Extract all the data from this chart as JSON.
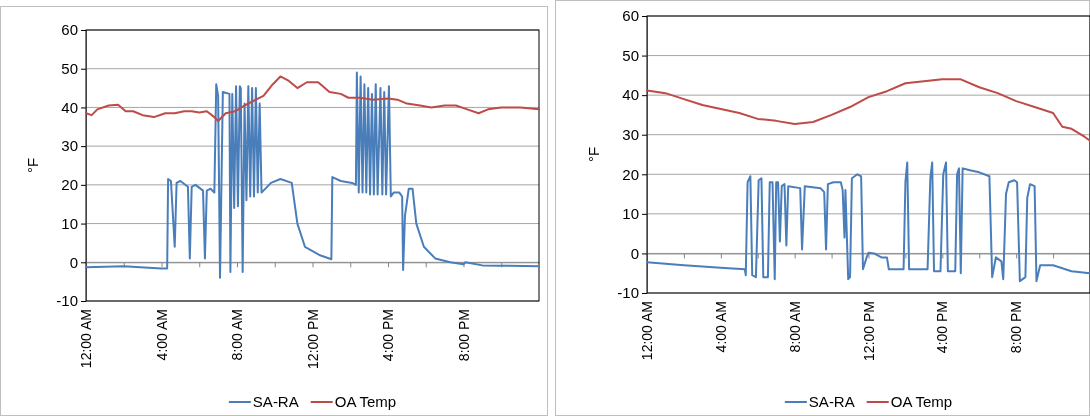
{
  "chart_data": [
    {
      "type": "line",
      "ylabel": "°F",
      "xlim": [
        0,
        24
      ],
      "ylim": [
        -10,
        60
      ],
      "yticks": [
        -10,
        0,
        10,
        20,
        30,
        40,
        50,
        60
      ],
      "xticks": [
        {
          "value": 0,
          "label": "12:00 AM"
        },
        {
          "value": 2,
          "label": null
        },
        {
          "value": 4,
          "label": "4:00 AM"
        },
        {
          "value": 6,
          "label": null
        },
        {
          "value": 8,
          "label": "8:00 AM"
        },
        {
          "value": 10,
          "label": null
        },
        {
          "value": 12,
          "label": "12:00 PM"
        },
        {
          "value": 14,
          "label": null
        },
        {
          "value": 16,
          "label": "4:00 PM"
        },
        {
          "value": 18,
          "label": null
        },
        {
          "value": 20,
          "label": "8:00 PM"
        },
        {
          "value": 22,
          "label": null
        }
      ],
      "grid": "y",
      "legend": "bottom",
      "line_style": "solid",
      "marker": "none",
      "series": [
        {
          "name": "SA-RA",
          "color": "#4a7ebb",
          "x": [
            0,
            2,
            4,
            4.3,
            4.35,
            4.5,
            4.7,
            4.8,
            5.0,
            5.4,
            5.5,
            5.6,
            5.8,
            6.2,
            6.3,
            6.4,
            6.6,
            6.8,
            6.9,
            7.0,
            7.1,
            7.25,
            7.6,
            7.65,
            7.75,
            7.85,
            7.95,
            8.05,
            8.15,
            8.2,
            8.3,
            8.4,
            8.5,
            8.6,
            8.7,
            8.8,
            8.9,
            9.0,
            9.1,
            9.2,
            9.3,
            9.8,
            10.3,
            10.9,
            11.2,
            11.6,
            12.4,
            13.0,
            13.05,
            13.5,
            14.1,
            14.3,
            14.35,
            14.45,
            14.55,
            14.65,
            14.75,
            14.85,
            14.95,
            15.05,
            15.15,
            15.25,
            15.35,
            15.45,
            15.6,
            15.7,
            15.8,
            15.9,
            16.05,
            16.15,
            16.3,
            16.6,
            16.75,
            16.8,
            16.9,
            17.1,
            17.3,
            17.5,
            17.9,
            18.5,
            19.3,
            20.0,
            20.1,
            21,
            22,
            24
          ],
          "values": [
            -1.3,
            -1.0,
            -1.6,
            -1.6,
            21.5,
            21,
            4,
            20.5,
            21,
            19.5,
            1,
            19.5,
            20,
            18.5,
            1,
            18.5,
            19,
            18,
            46,
            43,
            -4,
            44,
            43.5,
            -2.5,
            43.5,
            14,
            45.5,
            14.5,
            45.5,
            45,
            -2.5,
            41,
            16,
            45.5,
            17,
            45,
            17,
            45,
            18,
            41,
            18,
            20.5,
            21.5,
            20.5,
            10,
            4,
            1.8,
            0.8,
            22,
            21,
            20.5,
            20,
            49,
            18,
            48,
            18,
            46,
            18,
            45,
            17.5,
            43.5,
            17.5,
            46,
            17.5,
            45,
            17.5,
            44,
            17.5,
            45.5,
            17,
            18,
            18,
            17,
            -2,
            12,
            19,
            19,
            10,
            4,
            1,
            0,
            -0.5,
            0,
            -0.8,
            -0.9,
            -1.0
          ]
        },
        {
          "name": "OA Temp",
          "color": "#be4b48",
          "x": [
            0,
            0.3,
            0.6,
            1.2,
            1.7,
            2.1,
            2.5,
            3.0,
            3.6,
            4.2,
            4.7,
            5.2,
            5.6,
            6.0,
            6.4,
            6.8,
            7.0,
            7.4,
            7.9,
            8.4,
            9.0,
            9.4,
            9.9,
            10.3,
            10.7,
            11.2,
            11.7,
            12.3,
            12.9,
            13.5,
            13.9,
            14.5,
            15.2,
            16.0,
            16.5,
            17.0,
            17.7,
            18.3,
            19.0,
            19.6,
            20.2,
            20.8,
            21.3,
            22,
            23,
            24
          ],
          "values": [
            38.5,
            38,
            39.5,
            40.5,
            40.7,
            39,
            39,
            38,
            37.5,
            38.5,
            38.5,
            39,
            39,
            38.7,
            39,
            37.5,
            36.5,
            38.5,
            39,
            40.5,
            42,
            43,
            46,
            48,
            47,
            45,
            46.5,
            46.5,
            44,
            43.5,
            42.5,
            42.5,
            42,
            42.3,
            42,
            41,
            40.5,
            40,
            40.5,
            40.5,
            39.5,
            38.5,
            39.5,
            40,
            40,
            39.5
          ]
        }
      ]
    },
    {
      "type": "line",
      "ylabel": "°F",
      "xlim": [
        0,
        24
      ],
      "ylim": [
        -10,
        60
      ],
      "yticks": [
        -10,
        0,
        10,
        20,
        30,
        40,
        50,
        60
      ],
      "xticks": [
        {
          "value": 0,
          "label": "12:00 AM"
        },
        {
          "value": 2,
          "label": null
        },
        {
          "value": 4,
          "label": "4:00 AM"
        },
        {
          "value": 6,
          "label": null
        },
        {
          "value": 8,
          "label": "8:00 AM"
        },
        {
          "value": 10,
          "label": null
        },
        {
          "value": 12,
          "label": "12:00 PM"
        },
        {
          "value": 14,
          "label": null
        },
        {
          "value": 16,
          "label": "4:00 PM"
        },
        {
          "value": 18,
          "label": null
        },
        {
          "value": 20,
          "label": "8:00 PM"
        },
        {
          "value": 22,
          "label": null
        }
      ],
      "grid": "y",
      "legend": "bottom",
      "line_style": "solid",
      "marker": "none",
      "series": [
        {
          "name": "SA-RA",
          "color": "#4a7ebb",
          "x": [
            0,
            2,
            4,
            5.3,
            5.35,
            5.45,
            5.6,
            5.7,
            5.9,
            6.05,
            6.2,
            6.3,
            6.55,
            6.65,
            6.8,
            6.92,
            7.0,
            7.1,
            7.2,
            7.3,
            7.45,
            7.55,
            7.65,
            8.3,
            8.4,
            8.55,
            9.4,
            9.6,
            9.7,
            9.8,
            10.1,
            10.5,
            10.6,
            10.7,
            10.75,
            10.9,
            11.0,
            11.1,
            11.4,
            11.6,
            11.7,
            11.9,
            12.0,
            12.3,
            12.7,
            13.0,
            13.1,
            13.5,
            13.9,
            14.0,
            14.1,
            14.2,
            14.7,
            15.2,
            15.35,
            15.45,
            15.55,
            15.9,
            16.05,
            16.2,
            16.3,
            16.7,
            16.8,
            16.9,
            17.0,
            17.1,
            17.5,
            18.0,
            18.55,
            18.7,
            18.9,
            19.2,
            19.3,
            19.45,
            19.6,
            19.9,
            20.05,
            20.2,
            20.5,
            20.6,
            20.75,
            21.0,
            21.1,
            21.3,
            22,
            23,
            24
          ],
          "values": [
            -2.2,
            -3,
            -3.6,
            -4,
            -5.5,
            18,
            19.5,
            -5.5,
            -6,
            18.5,
            19,
            -6,
            -6,
            18,
            18,
            -6.5,
            18,
            18,
            3,
            17,
            17.5,
            2,
            17,
            16.5,
            1,
            17,
            16.5,
            15.5,
            1,
            17.5,
            18,
            18,
            16,
            4,
            16,
            -6.5,
            -6,
            19,
            20,
            19.5,
            -4,
            -1,
            0.2,
            0,
            -1,
            -1,
            -4,
            -4,
            -4,
            18,
            23,
            -4,
            -4,
            -4,
            19,
            23,
            -4.5,
            -4.5,
            20,
            23,
            -4.5,
            -4.5,
            20,
            21.5,
            -5,
            21.5,
            21,
            20.5,
            19.5,
            -6,
            -1,
            -2,
            -6.5,
            15,
            18,
            18.5,
            18,
            -7,
            -6,
            14,
            17.5,
            17,
            -7,
            -3,
            -3,
            -4.5,
            -5
          ]
        },
        {
          "name": "OA Temp",
          "color": "#be4b48",
          "x": [
            0,
            1,
            2,
            3,
            4,
            5,
            6,
            7,
            8,
            9,
            10,
            11,
            12,
            13,
            14,
            15,
            16,
            17,
            18,
            19,
            20,
            21,
            22,
            22.5,
            23,
            23.7,
            24
          ],
          "values": [
            41.2,
            40.5,
            39,
            37.5,
            36.5,
            35.5,
            34,
            33.5,
            32.7,
            33.2,
            35,
            37,
            39.5,
            41,
            43,
            43.5,
            44,
            44,
            42,
            40.5,
            38.5,
            37,
            35.5,
            32,
            31.5,
            29.5,
            28.5
          ]
        }
      ]
    }
  ]
}
